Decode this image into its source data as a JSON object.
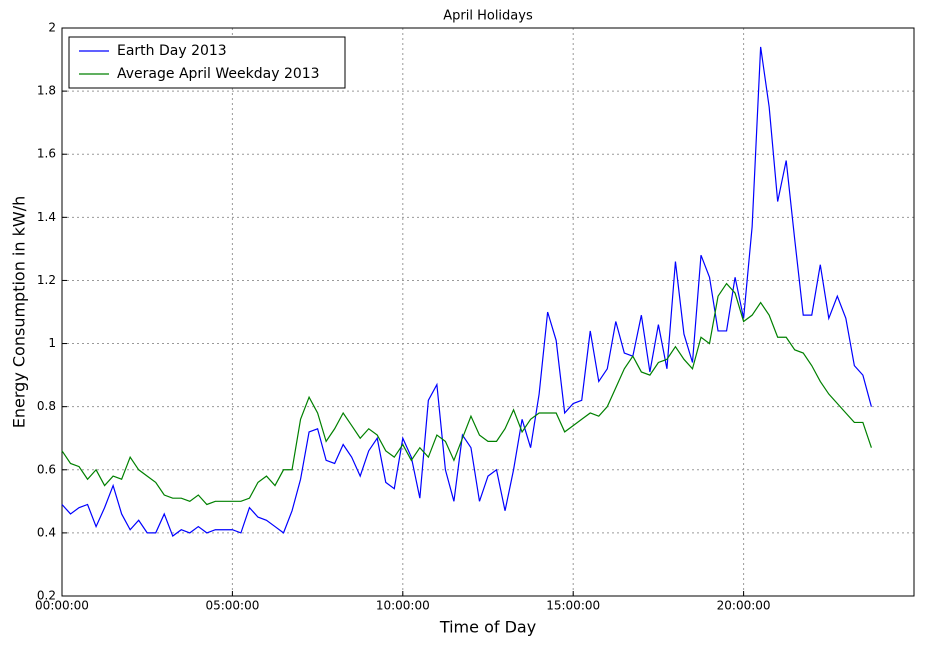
{
  "chart_data": {
    "type": "line",
    "title": "April Holidays",
    "x_label": "Time of Day",
    "y_label": "Energy Consumption in kW/h",
    "x": [
      0,
      0.25,
      0.5,
      0.75,
      1,
      1.25,
      1.5,
      1.75,
      2,
      2.25,
      2.5,
      2.75,
      3,
      3.25,
      3.5,
      3.75,
      4,
      4.25,
      4.5,
      4.75,
      5,
      5.25,
      5.5,
      5.75,
      6,
      6.25,
      6.5,
      6.75,
      7,
      7.25,
      7.5,
      7.75,
      8,
      8.25,
      8.5,
      8.75,
      9,
      9.25,
      9.5,
      9.75,
      10,
      10.25,
      10.5,
      10.75,
      11,
      11.25,
      11.5,
      11.75,
      12,
      12.25,
      12.5,
      12.75,
      13,
      13.25,
      13.5,
      13.75,
      14,
      14.25,
      14.5,
      14.75,
      15,
      15.25,
      15.5,
      15.75,
      16,
      16.25,
      16.5,
      16.75,
      17,
      17.25,
      17.5,
      17.75,
      18,
      18.25,
      18.5,
      18.75,
      19,
      19.25,
      19.5,
      19.75,
      20,
      20.25,
      20.5,
      20.75,
      21,
      21.25,
      21.5,
      21.75,
      22,
      22.25,
      22.5,
      22.75,
      23,
      23.25,
      23.5,
      23.75
    ],
    "series": [
      {
        "name": "Earth Day 2013",
        "color": "#0000ff",
        "values": [
          0.49,
          0.46,
          0.48,
          0.49,
          0.42,
          0.48,
          0.55,
          0.46,
          0.41,
          0.44,
          0.4,
          0.4,
          0.46,
          0.39,
          0.41,
          0.4,
          0.42,
          0.4,
          0.41,
          0.41,
          0.41,
          0.4,
          0.48,
          0.45,
          0.44,
          0.42,
          0.4,
          0.47,
          0.57,
          0.72,
          0.73,
          0.63,
          0.62,
          0.68,
          0.64,
          0.58,
          0.66,
          0.7,
          0.56,
          0.54,
          0.7,
          0.64,
          0.51,
          0.82,
          0.87,
          0.6,
          0.5,
          0.71,
          0.67,
          0.5,
          0.58,
          0.6,
          0.47,
          0.6,
          0.76,
          0.67,
          0.84,
          1.1,
          1.01,
          0.78,
          0.81,
          0.82,
          1.04,
          0.88,
          0.92,
          1.07,
          0.97,
          0.96,
          1.09,
          0.91,
          1.06,
          0.92,
          1.26,
          1.03,
          0.94,
          1.28,
          1.21,
          1.04,
          1.04,
          1.21,
          1.08,
          1.37,
          1.94,
          1.75,
          1.45,
          1.58,
          1.33,
          1.09,
          1.09,
          1.25,
          1.08,
          1.15,
          1.08,
          0.93,
          0.9,
          0.8
        ]
      },
      {
        "name": "Average April Weekday 2013",
        "color": "#008000",
        "values": [
          0.66,
          0.62,
          0.61,
          0.57,
          0.6,
          0.55,
          0.58,
          0.57,
          0.64,
          0.6,
          0.58,
          0.56,
          0.52,
          0.51,
          0.51,
          0.5,
          0.52,
          0.49,
          0.5,
          0.5,
          0.5,
          0.5,
          0.51,
          0.56,
          0.58,
          0.55,
          0.6,
          0.6,
          0.76,
          0.83,
          0.78,
          0.69,
          0.73,
          0.78,
          0.74,
          0.7,
          0.73,
          0.71,
          0.66,
          0.64,
          0.68,
          0.63,
          0.67,
          0.64,
          0.71,
          0.69,
          0.63,
          0.7,
          0.77,
          0.71,
          0.69,
          0.69,
          0.73,
          0.79,
          0.72,
          0.76,
          0.78,
          0.78,
          0.78,
          0.72,
          0.74,
          0.76,
          0.78,
          0.77,
          0.8,
          0.86,
          0.92,
          0.96,
          0.91,
          0.9,
          0.94,
          0.95,
          0.99,
          0.95,
          0.92,
          1.02,
          1.0,
          1.15,
          1.19,
          1.16,
          1.07,
          1.09,
          1.13,
          1.09,
          1.02,
          1.02,
          0.98,
          0.97,
          0.93,
          0.88,
          0.84,
          0.81,
          0.78,
          0.75,
          0.75,
          0.67
        ]
      }
    ],
    "xlim": [
      0,
      25
    ],
    "xticks": [
      {
        "value": 0,
        "label": "00:00:00"
      },
      {
        "value": 5,
        "label": "05:00:00"
      },
      {
        "value": 10,
        "label": "10:00:00"
      },
      {
        "value": 15,
        "label": "15:00:00"
      },
      {
        "value": 20,
        "label": "20:00:00"
      }
    ],
    "ylim": [
      0.2,
      2.0
    ],
    "yticks": [
      0.2,
      0.4,
      0.6,
      0.8,
      1.0,
      1.2,
      1.4,
      1.6,
      1.8,
      2.0
    ],
    "grid": true,
    "legend": "upper left"
  }
}
